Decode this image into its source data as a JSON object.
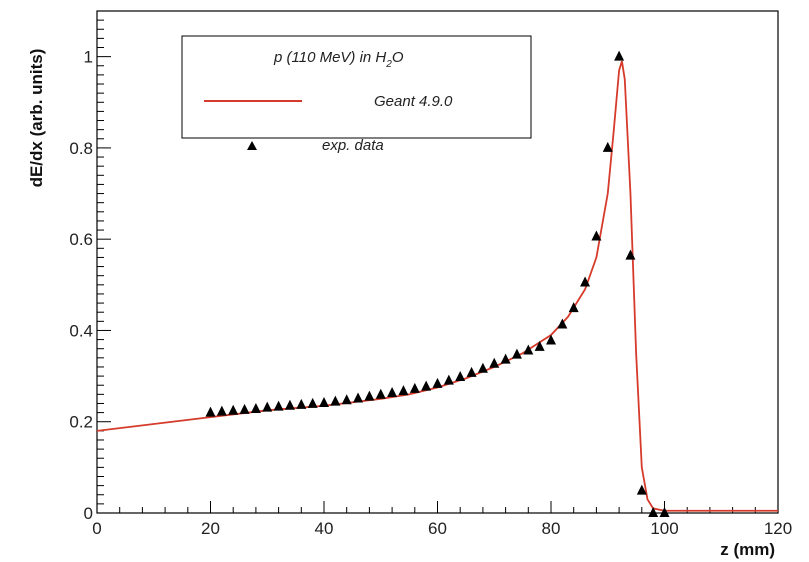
{
  "chart_data": {
    "type": "line",
    "title": "",
    "xlabel": "z (mm)",
    "ylabel": "dE/dx (arb. units)",
    "xlim": [
      0,
      120
    ],
    "ylim": [
      0,
      1.1
    ],
    "x_ticks": [
      "0",
      "20",
      "40",
      "60",
      "80",
      "100",
      "120"
    ],
    "y_ticks": [
      "0",
      "0.2",
      "0.4",
      "0.6",
      "0.8",
      "1"
    ],
    "grid": false,
    "legend_placement": "top-left",
    "legend": {
      "title_main": "p (110 MeV) in H",
      "title_sub": "2",
      "title_tail": "O"
    },
    "series": [
      {
        "name": "Geant 4.9.0",
        "kind": "line",
        "color": "#d63a2a",
        "x": [
          0,
          10,
          20,
          30,
          40,
          50,
          55,
          60,
          65,
          70,
          75,
          80,
          83,
          86,
          88,
          90,
          91,
          92,
          92.5,
          93,
          94,
          95,
          96,
          97,
          98,
          100,
          110,
          120
        ],
        "y": [
          0.18,
          0.195,
          0.21,
          0.225,
          0.235,
          0.25,
          0.26,
          0.275,
          0.295,
          0.32,
          0.35,
          0.39,
          0.43,
          0.49,
          0.56,
          0.7,
          0.83,
          0.97,
          0.99,
          0.95,
          0.7,
          0.35,
          0.1,
          0.03,
          0.01,
          0.005,
          0.005,
          0.005
        ]
      },
      {
        "name": "exp. data",
        "kind": "markers",
        "color": "#000000",
        "marker": "triangle",
        "x": [
          20,
          22,
          24,
          26,
          28,
          30,
          32,
          34,
          36,
          38,
          40,
          42,
          44,
          46,
          48,
          50,
          52,
          54,
          56,
          58,
          60,
          62,
          64,
          66,
          68,
          70,
          72,
          74,
          76,
          78,
          80,
          82,
          84,
          86,
          88,
          90,
          92,
          94,
          96,
          98,
          100
        ],
        "y": [
          0.22,
          0.222,
          0.224,
          0.226,
          0.228,
          0.231,
          0.233,
          0.235,
          0.237,
          0.239,
          0.241,
          0.244,
          0.247,
          0.251,
          0.255,
          0.259,
          0.263,
          0.267,
          0.272,
          0.277,
          0.283,
          0.29,
          0.298,
          0.307,
          0.316,
          0.327,
          0.336,
          0.347,
          0.356,
          0.364,
          0.378,
          0.413,
          0.449,
          0.505,
          0.606,
          0.8,
          1.0,
          0.564,
          0.049,
          0.0,
          0.0
        ]
      }
    ]
  }
}
